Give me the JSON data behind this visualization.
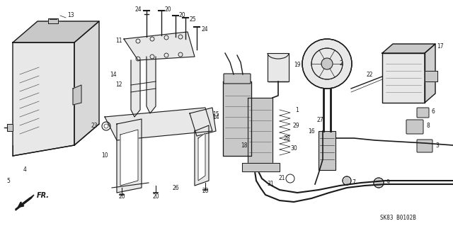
{
  "bg_color": "#ffffff",
  "fig_width": 6.4,
  "fig_height": 3.19,
  "dpi": 100,
  "diagram_code": "SK83 B0102B",
  "line_color": "#1a1a1a",
  "gray_fill": "#c8c8c8",
  "light_fill": "#e8e8e8",
  "dark_fill": "#a0a0a0",
  "label_fontsize": 5.5,
  "code_fontsize": 5.5
}
